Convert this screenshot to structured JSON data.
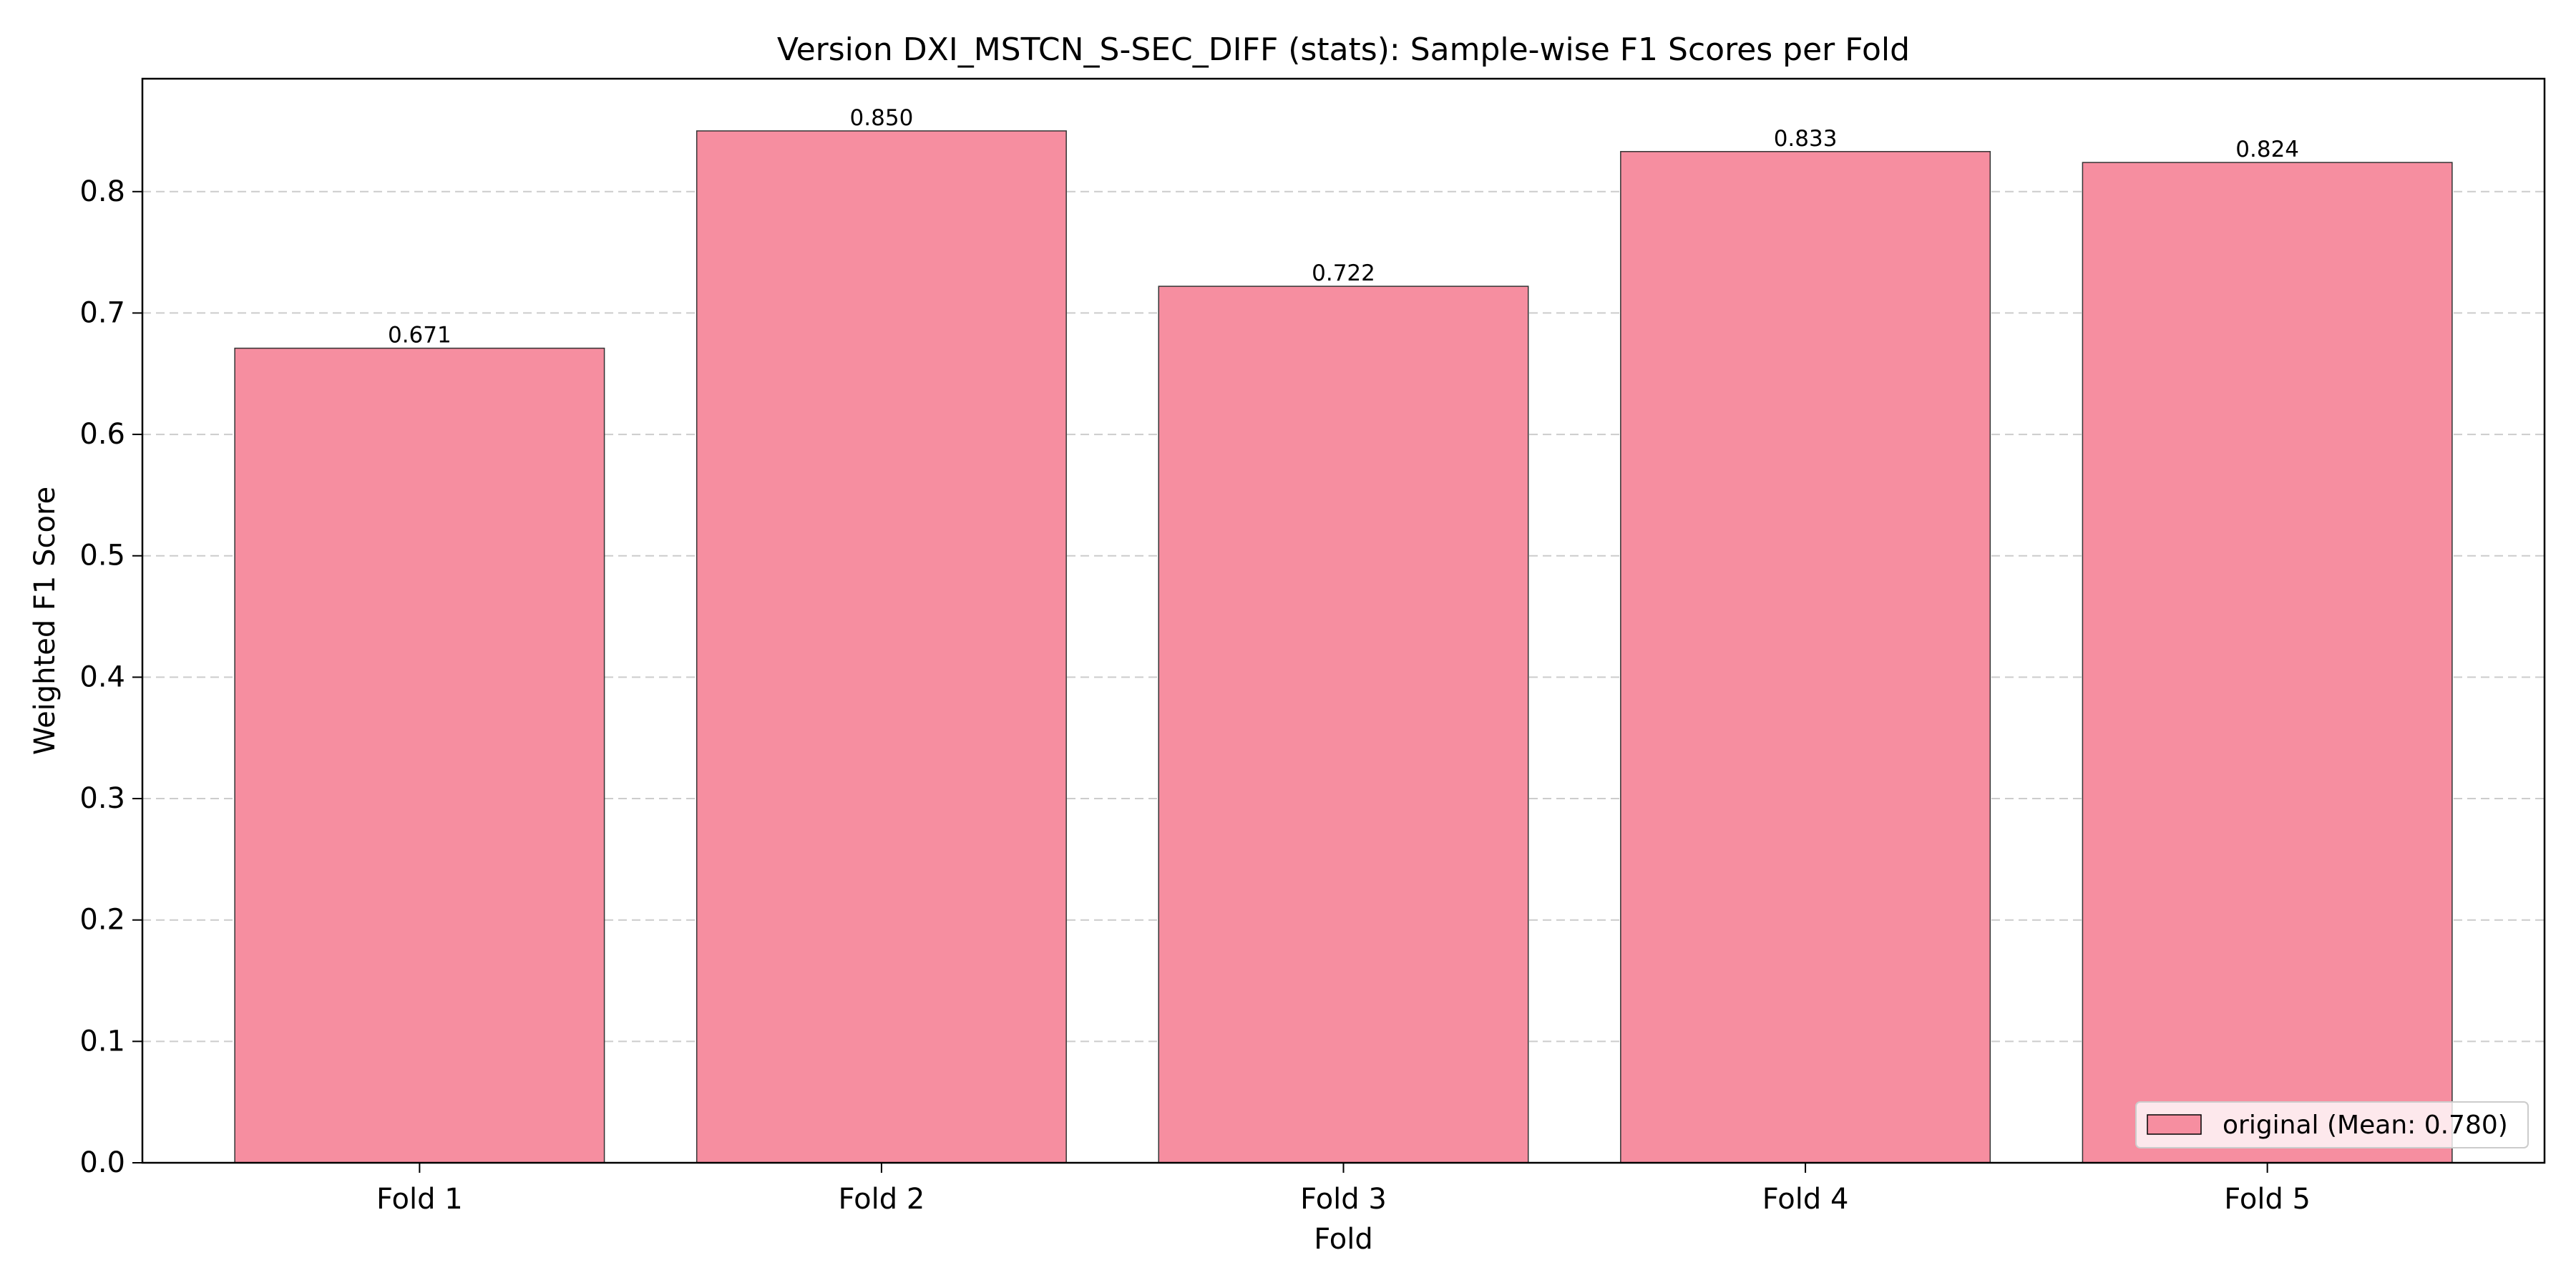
{
  "chart_data": {
    "type": "bar",
    "title": "Version DXI_MSTCN_S-SEC_DIFF (stats): Sample-wise F1 Scores per Fold",
    "xlabel": "Fold",
    "ylabel": "Weighted F1 Score",
    "categories": [
      "Fold 1",
      "Fold 2",
      "Fold 3",
      "Fold 4",
      "Fold 5"
    ],
    "series": [
      {
        "name": "original (Mean: 0.780)",
        "values": [
          0.671,
          0.85,
          0.722,
          0.833,
          0.824
        ],
        "color": "#f68ea0"
      }
    ],
    "data_labels": [
      "0.671",
      "0.850",
      "0.722",
      "0.833",
      "0.824"
    ],
    "ylim": [
      0,
      0.893
    ],
    "yticks": [
      0.0,
      0.1,
      0.2,
      0.3,
      0.4,
      0.5,
      0.6,
      0.7,
      0.8
    ],
    "ytick_labels": [
      "0.0",
      "0.1",
      "0.2",
      "0.3",
      "0.4",
      "0.5",
      "0.6",
      "0.7",
      "0.8"
    ],
    "grid": "y-dashed",
    "legend_position": "lower-right"
  }
}
